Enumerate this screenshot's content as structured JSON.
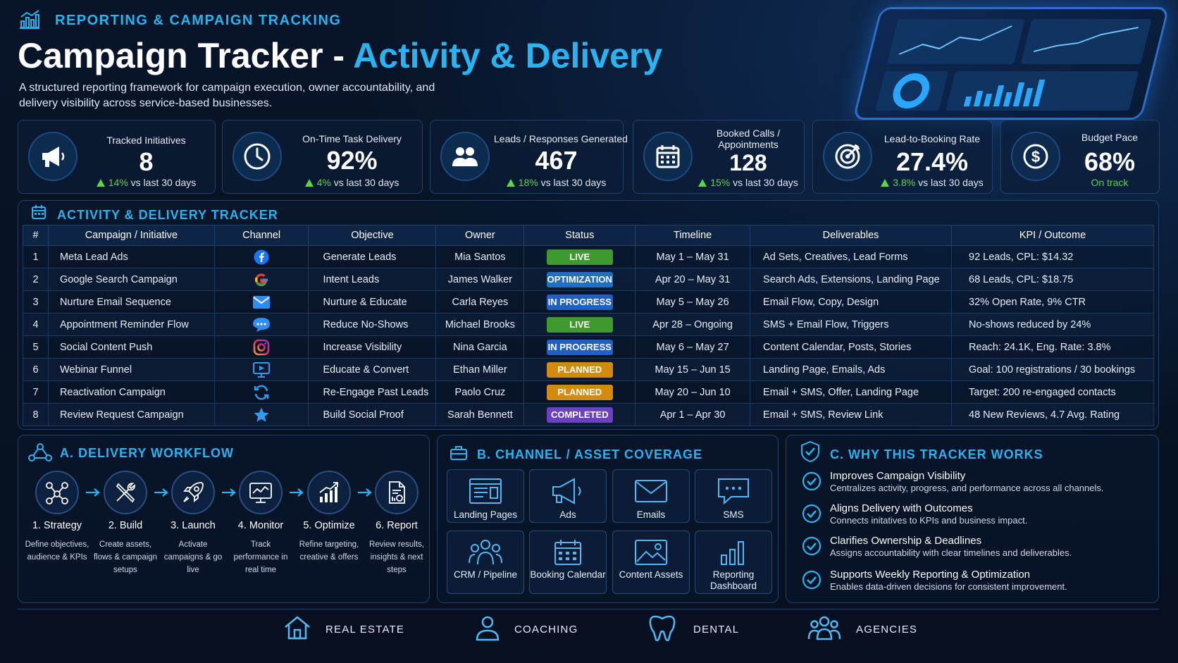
{
  "header": {
    "eyebrow": "REPORTING & CAMPAIGN TRACKING",
    "title_main": "Campaign Tracker - ",
    "title_accent": "Activity & Delivery",
    "subtitle": "A structured reporting framework for campaign execution, owner accountability, and delivery visibility across service-based businesses."
  },
  "kpis": [
    {
      "label": "Tracked Initiatives",
      "value": "8",
      "change": "14%",
      "suffix": "vs last 30 days",
      "icon": "megaphone-icon"
    },
    {
      "label": "On-Time Task Delivery",
      "value": "92%",
      "change": "4%",
      "suffix": "vs last 30 days",
      "icon": "clock-icon"
    },
    {
      "label": "Leads / Responses Generated",
      "value": "467",
      "change": "18%",
      "suffix": "vs last 30 days",
      "icon": "users-icon"
    },
    {
      "label": "Booked Calls / Appointments",
      "value": "128",
      "change": "15%",
      "suffix": "vs last 30 days",
      "icon": "calendar-icon"
    },
    {
      "label": "Lead-to-Booking Rate",
      "value": "27.4%",
      "change": "3.8%",
      "suffix": "vs last 30 days",
      "icon": "target-icon"
    },
    {
      "label": "Budget Pace",
      "value": "68%",
      "status": "On track",
      "icon": "dollar-icon"
    }
  ],
  "tracker": {
    "title": "ACTIVITY & DELIVERY TRACKER",
    "columns": [
      "#",
      "Campaign / Initiative",
      "Channel",
      "Objective",
      "Owner",
      "Status",
      "Timeline",
      "Deliverables",
      "KPI / Outcome"
    ],
    "rows": [
      {
        "num": "1",
        "campaign": "Meta Lead Ads",
        "channel_icon": "facebook-icon",
        "objective": "Generate Leads",
        "owner": "Mia Santos",
        "status": "LIVE",
        "status_color": "#3f9a2e",
        "timeline": "May 1 – May 31",
        "deliverables": "Ad Sets, Creatives, Lead Forms",
        "kpi": "92 Leads, CPL: $14.32"
      },
      {
        "num": "2",
        "campaign": "Google Search Campaign",
        "channel_icon": "google-icon",
        "objective": "Intent Leads",
        "owner": "James Walker",
        "status": "OPTIMIZATION",
        "status_color": "#1f6fc4",
        "timeline": "Apr 20 – May 31",
        "deliverables": "Search Ads, Extensions, Landing Page",
        "kpi": "68 Leads, CPL: $18.75"
      },
      {
        "num": "3",
        "campaign": "Nurture Email Sequence",
        "channel_icon": "email-icon",
        "objective": "Nurture & Educate",
        "owner": "Carla Reyes",
        "status": "IN PROGRESS",
        "status_color": "#1f5fc8",
        "timeline": "May 5 – May 26",
        "deliverables": "Email Flow, Copy, Design",
        "kpi": "32% Open Rate, 9% CTR"
      },
      {
        "num": "4",
        "campaign": "Appointment Reminder Flow",
        "channel_icon": "chat-icon",
        "objective": "Reduce No-Shows",
        "owner": "Michael Brooks",
        "status": "LIVE",
        "status_color": "#3f9a2e",
        "timeline": "Apr 28 – Ongoing",
        "deliverables": "SMS + Email Flow, Triggers",
        "kpi": "No-shows reduced by 24%"
      },
      {
        "num": "5",
        "campaign": "Social Content Push",
        "channel_icon": "instagram-icon",
        "objective": "Increase Visibility",
        "owner": "Nina Garcia",
        "status": "IN PROGRESS",
        "status_color": "#1f5fc8",
        "timeline": "May 6 – May 27",
        "deliverables": "Content Calendar, Posts, Stories",
        "kpi": "Reach: 24.1K, Eng. Rate: 3.8%"
      },
      {
        "num": "6",
        "campaign": "Webinar Funnel",
        "channel_icon": "webinar-icon",
        "objective": "Educate & Convert",
        "owner": "Ethan Miller",
        "status": "PLANNED",
        "status_color": "#d48a0e",
        "timeline": "May 15 – Jun 15",
        "deliverables": "Landing Page, Emails, Ads",
        "kpi": "Goal: 100 registrations / 30 bookings"
      },
      {
        "num": "7",
        "campaign": "Reactivation Campaign",
        "channel_icon": "refresh-icon",
        "objective": "Re-Engage Past Leads",
        "owner": "Paolo Cruz",
        "status": "PLANNED",
        "status_color": "#d48a0e",
        "timeline": "May 20 – Jun 10",
        "deliverables": "Email + SMS, Offer, Landing Page",
        "kpi": "Target: 200 re-engaged contacts"
      },
      {
        "num": "8",
        "campaign": "Review Request Campaign",
        "channel_icon": "star-icon",
        "objective": "Build Social Proof",
        "owner": "Sarah Bennett",
        "status": "COMPLETED",
        "status_color": "#6b3fc6",
        "timeline": "Apr 1 – Apr 30",
        "deliverables": "Email + SMS, Review Link",
        "kpi": "48 New Reviews, 4.7 Avg. Rating"
      }
    ]
  },
  "workflow": {
    "title": "A. DELIVERY WORKFLOW",
    "steps": [
      {
        "label": "1. Strategy",
        "desc": "Define objectives, audience & KPIs",
        "icon": "network-icon"
      },
      {
        "label": "2. Build",
        "desc": "Create assets, flows & campaign setups",
        "icon": "tools-icon"
      },
      {
        "label": "3. Launch",
        "desc": "Activate campaigns & go live",
        "icon": "rocket-icon"
      },
      {
        "label": "4. Monitor",
        "desc": "Track performance in real time",
        "icon": "monitor-icon"
      },
      {
        "label": "5. Optimize",
        "desc": "Refine targeting, creative & offers",
        "icon": "growth-chart-icon"
      },
      {
        "label": "6. Report",
        "desc": "Review results, insights & next steps",
        "icon": "report-icon"
      }
    ]
  },
  "coverage": {
    "title": "B. CHANNEL / ASSET COVERAGE",
    "tiles": [
      {
        "label": "Landing Pages",
        "icon": "landing-page-icon"
      },
      {
        "label": "Ads",
        "icon": "megaphone-icon"
      },
      {
        "label": "Emails",
        "icon": "email-icon"
      },
      {
        "label": "SMS",
        "icon": "sms-icon"
      },
      {
        "label": "CRM / Pipeline",
        "icon": "crm-icon"
      },
      {
        "label": "Booking Calendar",
        "icon": "calendar-icon"
      },
      {
        "label": "Content Assets",
        "icon": "image-icon"
      },
      {
        "label": "Reporting Dashboard",
        "icon": "bar-chart-icon"
      }
    ]
  },
  "why": {
    "title": "C. WHY THIS TRACKER WORKS",
    "items": [
      {
        "heading": "Improves Campaign Visibility",
        "desc": "Centralizes activity, progress, and performance across all channels."
      },
      {
        "heading": "Aligns Delivery with Outcomes",
        "desc": "Connects initatives to KPIs and business impact."
      },
      {
        "heading": "Clarifies Ownership & Deadlines",
        "desc": "Assigns accountability with clear timelines and deliverables."
      },
      {
        "heading": "Supports Weekly Reporting & Optimization",
        "desc": "Enables data-driven decisions for consistent improvement."
      }
    ]
  },
  "footer": {
    "industries": [
      {
        "label": "REAL ESTATE",
        "icon": "house-icon"
      },
      {
        "label": "COACHING",
        "icon": "person-icon"
      },
      {
        "label": "DENTAL",
        "icon": "tooth-icon"
      },
      {
        "label": "AGENCIES",
        "icon": "team-icon"
      }
    ]
  },
  "colors": {
    "accent": "#29b3f0",
    "positive": "#5fd34a",
    "live": "#3f9a2e",
    "in_progress": "#1f5fc8",
    "planned": "#d48a0e",
    "completed": "#6b3fc6"
  }
}
